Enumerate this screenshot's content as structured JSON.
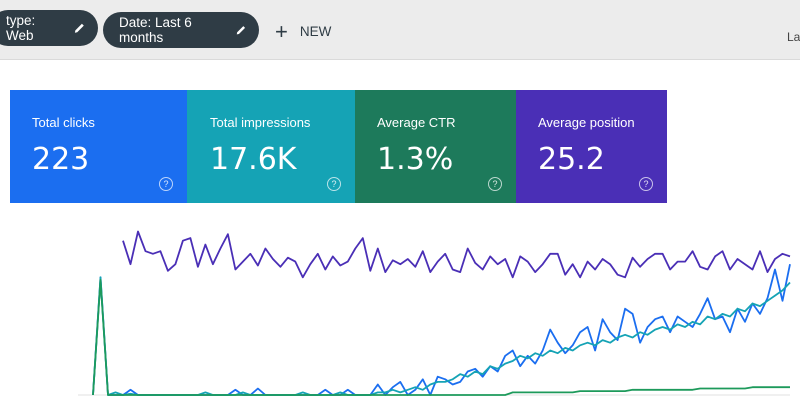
{
  "filters": {
    "type_chip": "type: Web",
    "date_chip": "Date: Last 6 months",
    "new_label": "NEW",
    "right_truncated": "La"
  },
  "metrics": [
    {
      "label": "Total clicks",
      "value": "223",
      "color": "#1b6ef0"
    },
    {
      "label": "Total impressions",
      "value": "17.6K",
      "color": "#15a3b5"
    },
    {
      "label": "Average CTR",
      "value": "1.3%",
      "color": "#1d7a5b"
    },
    {
      "label": "Average position",
      "value": "25.2",
      "color": "#4a2fb6"
    }
  ],
  "help_glyph": "?",
  "chart_data": {
    "type": "line",
    "x": [
      0,
      1,
      2,
      3,
      4,
      5,
      6,
      7,
      8,
      9,
      10,
      11,
      12,
      13,
      14,
      15,
      16,
      17,
      18,
      19,
      20,
      21,
      22,
      23,
      24,
      25,
      26,
      27,
      28,
      29,
      30,
      31,
      32,
      33,
      34,
      35,
      36,
      37,
      38,
      39,
      40,
      41,
      42,
      43,
      44,
      45,
      46,
      47,
      48,
      49,
      50,
      51,
      52,
      53,
      54,
      55,
      56,
      57,
      58,
      59,
      60,
      61,
      62,
      63,
      64,
      65,
      66,
      67,
      68,
      69,
      70,
      71,
      72,
      73,
      74,
      75,
      76,
      77,
      78,
      79,
      80,
      81,
      82,
      83,
      84,
      85,
      86,
      87,
      88,
      89,
      90,
      91,
      92,
      93,
      94,
      95
    ],
    "series": [
      {
        "color": "#4a2fb6",
        "values": [
          null,
          null,
          null,
          null,
          null,
          null,
          118,
          100,
          125,
          110,
          108,
          110,
          95,
          100,
          118,
          120,
          98,
          115,
          100,
          112,
          123,
          96,
          102,
          108,
          99,
          112,
          104,
          98,
          105,
          102,
          90,
          100,
          108,
          96,
          106,
          99,
          102,
          112,
          120,
          95,
          112,
          94,
          103,
          100,
          104,
          98,
          110,
          94,
          102,
          108,
          96,
          94,
          112,
          101,
          96,
          106,
          100,
          104,
          90,
          106,
          102,
          94,
          100,
          108,
          108,
          92,
          100,
          90,
          102,
          96,
          104,
          100,
          92,
          90,
          105,
          98,
          104,
          108,
          108,
          96,
          102,
          102,
          110,
          98,
          96,
          106,
          110,
          96,
          104,
          100,
          96,
          110,
          94,
          104,
          108,
          106
        ]
      },
      {
        "color": "#1b6ef0",
        "values": [
          null,
          null,
          0,
          90,
          0,
          0,
          0,
          4,
          0,
          0,
          0,
          0,
          0,
          0,
          0,
          0,
          0,
          0,
          0,
          0,
          0,
          4,
          0,
          0,
          5,
          0,
          0,
          0,
          0,
          0,
          0,
          0,
          0,
          4,
          0,
          0,
          4,
          0,
          0,
          0,
          8,
          0,
          6,
          10,
          0,
          4,
          12,
          0,
          14,
          12,
          8,
          10,
          18,
          20,
          14,
          22,
          18,
          30,
          34,
          22,
          30,
          24,
          34,
          50,
          40,
          32,
          38,
          48,
          52,
          34,
          58,
          48,
          42,
          66,
          62,
          40,
          52,
          58,
          60,
          48,
          60,
          56,
          52,
          62,
          74,
          58,
          60,
          48,
          66,
          56,
          70,
          62,
          74,
          96,
          72,
          100
        ]
      },
      {
        "color": "#15a3b5",
        "values": [
          null,
          null,
          0,
          90,
          0,
          2,
          0,
          1,
          0,
          0,
          0,
          0,
          0,
          0,
          0,
          0,
          0,
          2,
          0,
          0,
          0,
          0,
          2,
          0,
          0,
          0,
          0,
          0,
          0,
          0,
          2,
          0,
          0,
          0,
          0,
          2,
          0,
          0,
          0,
          0,
          2,
          2,
          4,
          2,
          4,
          6,
          4,
          8,
          10,
          10,
          12,
          16,
          14,
          18,
          16,
          22,
          20,
          24,
          26,
          30,
          28,
          32,
          30,
          34,
          32,
          36,
          34,
          38,
          40,
          38,
          42,
          40,
          44,
          46,
          44,
          48,
          46,
          50,
          52,
          50,
          54,
          52,
          56,
          54,
          60,
          58,
          62,
          60,
          66,
          64,
          70,
          68,
          72,
          76,
          80,
          86
        ]
      },
      {
        "color": "#1d9a5b",
        "values": [
          null,
          null,
          0,
          88,
          0,
          0,
          0,
          0,
          0,
          0,
          0,
          0,
          0,
          0,
          0,
          0,
          0,
          0,
          0,
          0,
          0,
          0,
          0,
          0,
          0,
          0,
          0,
          0,
          0,
          0,
          0,
          0,
          0,
          0,
          0,
          0,
          0,
          0,
          0,
          0,
          0,
          0,
          0,
          0,
          0,
          0,
          0,
          0,
          0,
          0,
          0,
          0,
          0,
          0,
          0,
          0,
          0,
          0,
          2,
          2,
          2,
          2,
          2,
          2,
          2,
          2,
          2,
          3,
          3,
          3,
          3,
          3,
          3,
          3,
          4,
          4,
          4,
          4,
          4,
          4,
          4,
          4,
          4,
          5,
          5,
          5,
          5,
          5,
          5,
          5,
          6,
          6,
          6,
          6,
          6,
          6
        ]
      }
    ],
    "ylim": [
      0,
      130
    ]
  }
}
